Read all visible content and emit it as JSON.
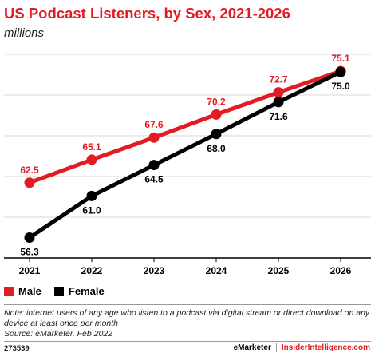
{
  "title": "US Podcast Listeners, by Sex, 2021-2026",
  "subtitle": "millions",
  "chart_data": {
    "type": "line",
    "x": [
      "2021",
      "2022",
      "2023",
      "2024",
      "2025",
      "2026"
    ],
    "series": [
      {
        "name": "Male",
        "color": "#e31b23",
        "values": [
          62.5,
          65.1,
          67.6,
          70.2,
          72.7,
          75.1
        ],
        "labels": [
          "62.5",
          "65.1",
          "67.6",
          "70.2",
          "72.7",
          "75.1"
        ]
      },
      {
        "name": "Female",
        "color": "#000000",
        "values": [
          56.3,
          61.0,
          64.5,
          68.0,
          71.6,
          75.0
        ],
        "labels": [
          "56.3",
          "61.0",
          "64.5",
          "68.0",
          "71.6",
          "75.0"
        ]
      }
    ],
    "ylim": [
      54,
      77
    ],
    "grid": true,
    "legend": "bottom-left"
  },
  "legend": {
    "male": "Male",
    "female": "Female"
  },
  "note": "Note: internet users of any age who listen to a podcast via digital stream or direct download on any device at least once per month",
  "source": "Source: eMarketer, Feb 2022",
  "footer": {
    "id": "273539",
    "brand1": "eMarketer",
    "brand2": "InsiderIntelligence.com"
  }
}
